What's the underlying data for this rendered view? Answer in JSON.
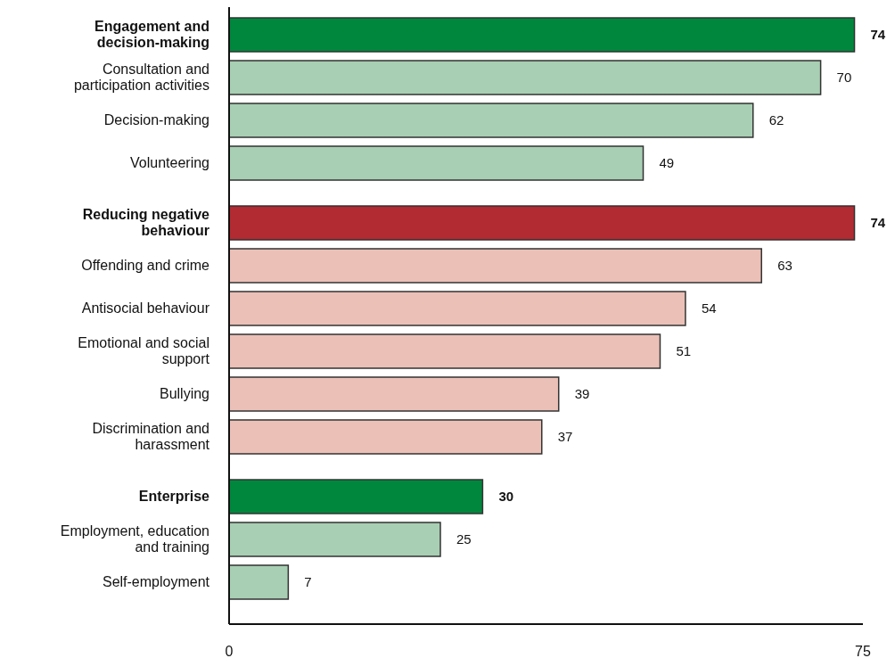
{
  "chart_data": {
    "type": "bar",
    "orientation": "horizontal",
    "categories": [
      "Engagement and decision-making",
      "Consultation and participation activities",
      "Decision-making",
      "Volunteering",
      null,
      "Reducing negative behaviour",
      "Offending and crime",
      "Antisocial behaviour",
      "Emotional and social support",
      "Bullying",
      "Discrimination and harassment",
      null,
      "Enterprise",
      "Employment, education and training",
      "Self-employment"
    ],
    "values": [
      74,
      70,
      62,
      49,
      null,
      74,
      63,
      54,
      51,
      39,
      37,
      null,
      30,
      25,
      7
    ],
    "colors": [
      "#00873e",
      "#a8cfb3",
      "#a8cfb3",
      "#a8cfb3",
      null,
      "#b22a32",
      "#ebc0b7",
      "#ebc0b7",
      "#ebc0b7",
      "#ebc0b7",
      "#ebc0b7",
      null,
      "#00873e",
      "#a8cfb3",
      "#a8cfb3"
    ],
    "xlim": [
      0,
      75
    ],
    "xticks": [
      0,
      75
    ],
    "data_labels": true
  }
}
